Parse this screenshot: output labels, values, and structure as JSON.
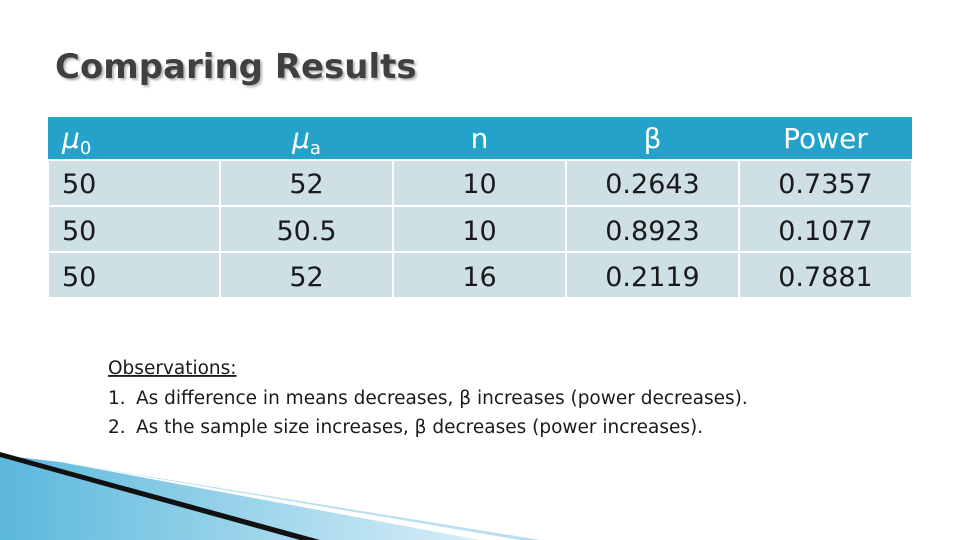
{
  "title": "Comparing Results",
  "table": {
    "headers": [
      {
        "text": "μ",
        "sub": "0"
      },
      {
        "text": "μ",
        "sub": "a"
      },
      {
        "text": "n"
      },
      {
        "text": "β"
      },
      {
        "text": "Power"
      }
    ],
    "rows": [
      [
        "50",
        "52",
        "10",
        "0.2643",
        "0.7357"
      ],
      [
        "50",
        "50.5",
        "10",
        "0.8923",
        "0.1077"
      ],
      [
        "50",
        "52",
        "16",
        "0.2119",
        "0.7881"
      ]
    ]
  },
  "observations": {
    "heading": "Observations:",
    "items": [
      {
        "number": "1.",
        "text": "As difference in means decreases, β increases (power decreases)."
      },
      {
        "number": "2.",
        "text": "As the sample size increases, β decreases (power increases)."
      }
    ]
  }
}
